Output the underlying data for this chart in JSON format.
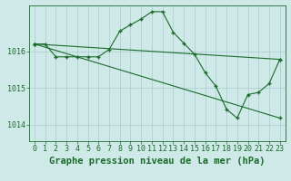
{
  "bg_color": "#cfe8e8",
  "grid_color": "#aacccc",
  "line_color": "#1a6b2a",
  "xlabel": "Graphe pression niveau de la mer (hPa)",
  "ylabel": "",
  "xlim": [
    -0.5,
    23.5
  ],
  "ylim": [
    1013.55,
    1017.25
  ],
  "yticks": [
    1014,
    1015,
    1016
  ],
  "xticks": [
    0,
    1,
    2,
    3,
    4,
    5,
    6,
    7,
    8,
    9,
    10,
    11,
    12,
    13,
    14,
    15,
    16,
    17,
    18,
    19,
    20,
    21,
    22,
    23
  ],
  "series1_x": [
    0,
    1,
    2,
    3,
    4,
    5,
    6,
    7,
    8,
    9,
    10,
    11,
    12,
    13,
    14,
    15,
    16,
    17,
    18,
    19,
    20,
    21,
    22,
    23
  ],
  "series1_y": [
    1016.2,
    1016.2,
    1015.85,
    1015.85,
    1015.85,
    1015.85,
    1015.85,
    1016.05,
    1016.55,
    1016.72,
    1016.88,
    1017.08,
    1017.08,
    1016.52,
    1016.22,
    1015.92,
    1015.42,
    1015.05,
    1014.42,
    1014.18,
    1014.82,
    1014.88,
    1015.12,
    1015.78
  ],
  "series2_x": [
    0,
    23
  ],
  "series2_y": [
    1016.2,
    1015.78
  ],
  "series3_x": [
    0,
    23
  ],
  "series3_y": [
    1016.2,
    1014.18
  ],
  "line_width": 0.8,
  "marker": "+",
  "marker_size": 3,
  "xlabel_fontsize": 7.5,
  "tick_fontsize": 6.0
}
